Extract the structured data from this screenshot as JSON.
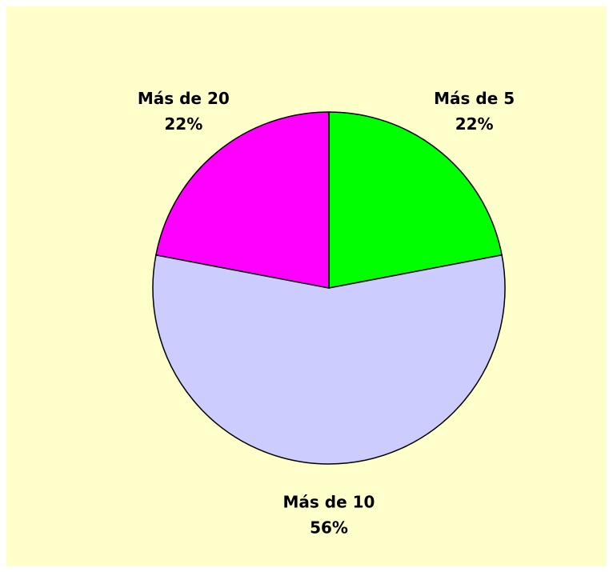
{
  "chart_data": {
    "type": "pie",
    "categories": [
      "Más de 5",
      "Más de 10",
      "Más de 20"
    ],
    "values": [
      22,
      56,
      22
    ],
    "value_labels": [
      "22%",
      "56%",
      "22%"
    ],
    "colors": [
      "#00ff00",
      "#ccccff",
      "#ff00ff"
    ]
  }
}
